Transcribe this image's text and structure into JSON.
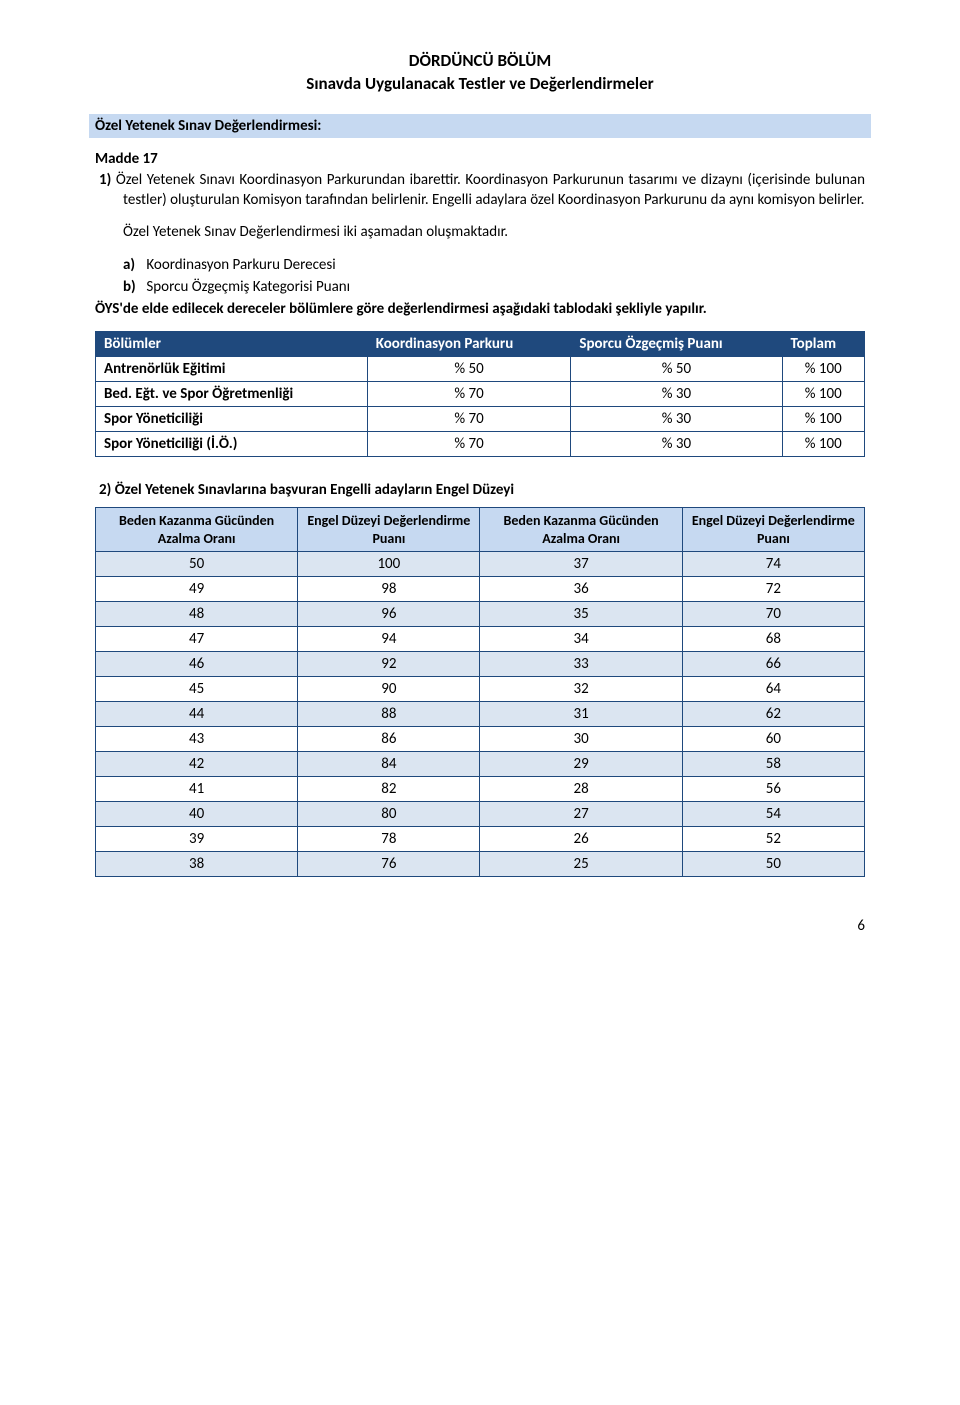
{
  "chapter": {
    "line1": "DÖRDÜNCÜ BÖLÜM",
    "line2": "Sınavda Uygulanacak Testler ve Değerlendirmeler"
  },
  "section_heading": "Özel Yetenek Sınav Değerlendirmesi:",
  "madde_label": "Madde 17",
  "item1": {
    "marker": "1)",
    "text": "Özel Yetenek Sınavı Koordinasyon Parkurundan ibarettir. Koordinasyon Parkurunun tasarımı ve dizaynı (içerisinde bulunan testler) oluşturulan Komisyon tarafından belirlenir. Engelli adaylara özel Koordinasyon Parkurunu da aynı komisyon belirler."
  },
  "para2": "Özel Yetenek Sınav Değerlendirmesi iki aşamadan oluşmaktadır.",
  "sublist": {
    "a": {
      "lbl": "a)",
      "text": "Koordinasyon Parkuru Derecesi"
    },
    "b": {
      "lbl": "b)",
      "text": "Sporcu Özgeçmiş Kategorisi Puanı"
    }
  },
  "para3": "ÖYS'de elde edilecek dereceler bölümlere göre değerlendirmesi aşağıdaki tablodaki şekliyle yapılır.",
  "table1": {
    "headers": {
      "c1": "Bölümler",
      "c2": "Koordinasyon Parkuru",
      "c3": "Sporcu Özgeçmiş Puanı",
      "c4": "Toplam"
    },
    "rows": [
      {
        "c1": "Antrenörlük Eğitimi",
        "c2": "% 50",
        "c3": "% 50",
        "c4": "% 100"
      },
      {
        "c1": "Bed. Eğt. ve Spor Öğretmenliği",
        "c2": "% 70",
        "c3": "% 30",
        "c4": "% 100"
      },
      {
        "c1": "Spor Yöneticiliği",
        "c2": "% 70",
        "c3": "% 30",
        "c4": "% 100"
      },
      {
        "c1": "Spor Yöneticiliği (İ.Ö.)",
        "c2": "% 70",
        "c3": "% 30",
        "c4": "% 100"
      }
    ],
    "colors": {
      "header_bg": "#1f497d",
      "header_text": "#ffffff",
      "border": "#1f497d"
    }
  },
  "item2": {
    "marker": "2)",
    "text": "Özel Yetenek Sınavlarına başvuran Engelli adayların Engel Düzeyi"
  },
  "table2": {
    "headers": {
      "c1": "Beden Kazanma Gücünden Azalma Oranı",
      "c2": "Engel Düzeyi Değerlendirme Puanı",
      "c3": "Beden Kazanma Gücünden Azalma Oranı",
      "c4": "Engel Düzeyi Değerlendirme Puanı"
    },
    "rows": [
      {
        "c1": "50",
        "c2": "100",
        "c3": "37",
        "c4": "74",
        "alt": true
      },
      {
        "c1": "49",
        "c2": "98",
        "c3": "36",
        "c4": "72",
        "alt": false
      },
      {
        "c1": "48",
        "c2": "96",
        "c3": "35",
        "c4": "70",
        "alt": true
      },
      {
        "c1": "47",
        "c2": "94",
        "c3": "34",
        "c4": "68",
        "alt": false
      },
      {
        "c1": "46",
        "c2": "92",
        "c3": "33",
        "c4": "66",
        "alt": true
      },
      {
        "c1": "45",
        "c2": "90",
        "c3": "32",
        "c4": "64",
        "alt": false
      },
      {
        "c1": "44",
        "c2": "88",
        "c3": "31",
        "c4": "62",
        "alt": true
      },
      {
        "c1": "43",
        "c2": "86",
        "c3": "30",
        "c4": "60",
        "alt": false
      },
      {
        "c1": "42",
        "c2": "84",
        "c3": "29",
        "c4": "58",
        "alt": true
      },
      {
        "c1": "41",
        "c2": "82",
        "c3": "28",
        "c4": "56",
        "alt": false
      },
      {
        "c1": "40",
        "c2": "80",
        "c3": "27",
        "c4": "54",
        "alt": true
      },
      {
        "c1": "39",
        "c2": "78",
        "c3": "26",
        "c4": "52",
        "alt": false
      },
      {
        "c1": "38",
        "c2": "76",
        "c3": "25",
        "c4": "50",
        "alt": true
      }
    ],
    "colors": {
      "header_bg": "#c6d9f1",
      "alt_bg": "#dbe5f1",
      "plain_bg": "#ffffff",
      "border": "#1f497d"
    }
  },
  "page_number": "6"
}
